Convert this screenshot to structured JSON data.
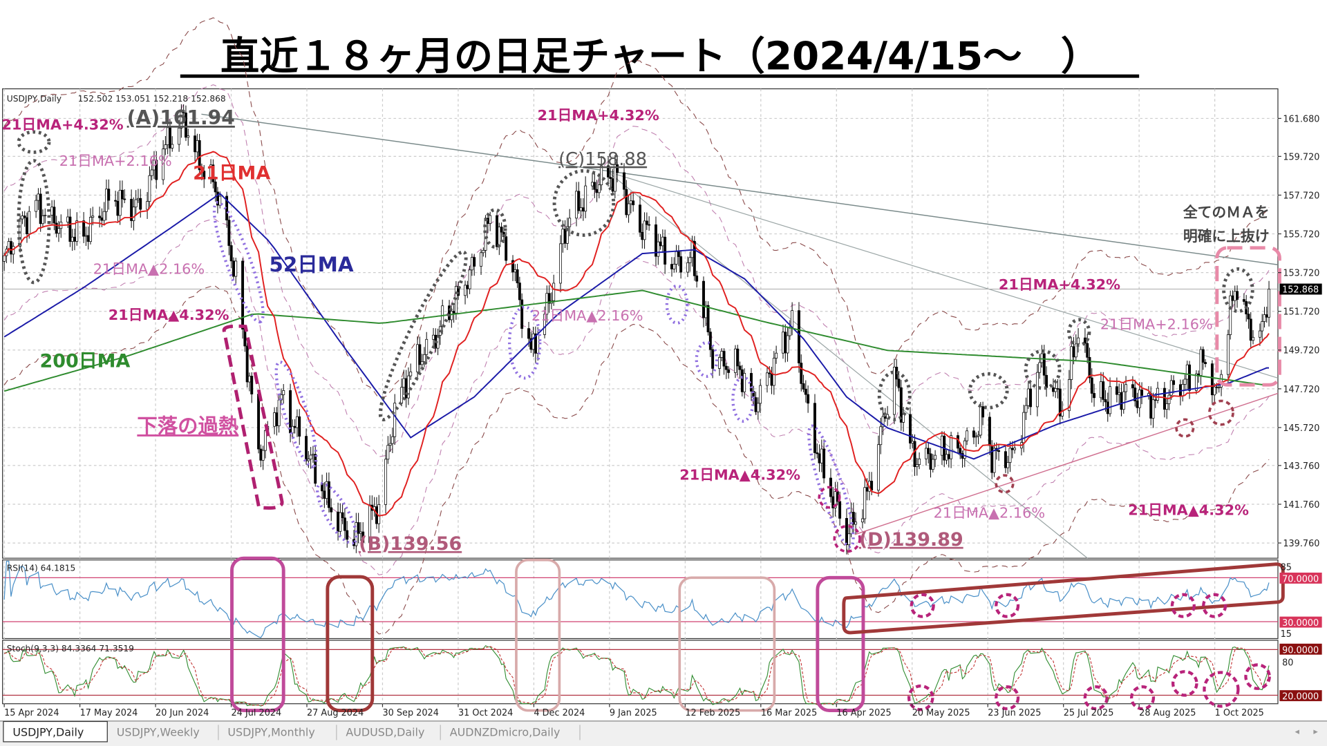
{
  "title": "直近１８ヶ月の日足チャート（2024/4/15～　）",
  "header": {
    "symbol": "USDJPY,Daily",
    "ohlc": "152.502 153.051 152.218 152.868"
  },
  "indicators": {
    "rsi_label": "RSI(14) 64.1815",
    "stoch_label": "Stoch(9,3,3) 84.3364 71.3519"
  },
  "annotations": {
    "a_high": "(A)161.94",
    "b_low": "(B)139.56",
    "c_high": "(C)158.88",
    "d_low": "(D)139.89",
    "env_up432": "21日MA+4.32%",
    "env_up216": "21日MA+2.16%",
    "env_dn216": "21日MA▲2.16%",
    "env_dn432": "21日MA▲4.32%",
    "ma21": "21日MA",
    "ma52": "52日MA",
    "ma200": "200日MA",
    "overheat": "下落の過熱",
    "breakout_line1": "全てのＭＡを",
    "breakout_line2": "明確に上抜け"
  },
  "price_axis": [
    "161.680",
    "159.720",
    "157.720",
    "155.720",
    "153.720",
    "151.720",
    "149.720",
    "147.720",
    "145.720",
    "143.760",
    "141.760",
    "139.760"
  ],
  "current_price": "152.868",
  "rsi_axis": {
    "top": "85",
    "upper": "70.0000",
    "lower": "30.0000",
    "bottom": "15"
  },
  "stoch_axis": {
    "upper": "90.0000",
    "mid": "80",
    "lower": "20.0000"
  },
  "date_axis": [
    "15 Apr 2024",
    "17 May 2024",
    "20 Jun 2024",
    "24 Jul 2024",
    "27 Aug 2024",
    "30 Sep 2024",
    "31 Oct 2024",
    "4 Dec 2024",
    "9 Jan 2025",
    "12 Feb 2025",
    "16 Mar 2025",
    "16 Apr 2025",
    "20 May 2025",
    "23 Jun 2025",
    "25 Jul 2025",
    "28 Aug 2025",
    "1 Oct 2025"
  ],
  "tabs": [
    {
      "label": "USDJPY,Daily",
      "active": true
    },
    {
      "label": "USDJPY,Weekly",
      "active": false
    },
    {
      "label": "USDJPY,Monthly",
      "active": false
    },
    {
      "label": "AUDUSD,Daily",
      "active": false
    },
    {
      "label": "AUDNZDmicro,Daily",
      "active": false
    }
  ],
  "colors": {
    "ma21": "#e02020",
    "ma52": "#1a1aa8",
    "ma200": "#2e8b2e",
    "rsi": "#4a90c8",
    "stoch_k": "#2e8b2e",
    "stoch_d": "#c03030",
    "level_line": "#d04070",
    "annotation_magenta": "#b8237a"
  },
  "chart_data": {
    "type": "candlestick",
    "symbol": "USDJPY",
    "timeframe": "Daily",
    "ylim": [
      139.76,
      161.68
    ],
    "grid": true,
    "close_keypoints": [
      [
        "2024-04-15",
        154.3
      ],
      [
        "2024-04-29",
        157.5
      ],
      [
        "2024-05-10",
        155.8
      ],
      [
        "2024-05-17",
        155.6
      ],
      [
        "2024-05-31",
        157.2
      ],
      [
        "2024-06-14",
        157.4
      ],
      [
        "2024-06-20",
        158.9
      ],
      [
        "2024-07-03",
        161.9
      ],
      [
        "2024-07-11",
        159.0
      ],
      [
        "2024-07-19",
        157.5
      ],
      [
        "2024-07-26",
        153.8
      ],
      [
        "2024-08-05",
        144.0
      ],
      [
        "2024-08-15",
        147.5
      ],
      [
        "2024-08-27",
        144.0
      ],
      [
        "2024-09-16",
        139.6
      ],
      [
        "2024-09-27",
        142.0
      ],
      [
        "2024-10-04",
        146.5
      ],
      [
        "2024-10-15",
        149.5
      ],
      [
        "2024-10-31",
        152.0
      ],
      [
        "2024-11-15",
        156.5
      ],
      [
        "2024-11-25",
        154.0
      ],
      [
        "2024-12-03",
        149.8
      ],
      [
        "2024-12-11",
        152.0
      ],
      [
        "2024-12-20",
        157.0
      ],
      [
        "2025-01-10",
        158.9
      ],
      [
        "2025-01-20",
        156.0
      ],
      [
        "2025-02-03",
        154.5
      ],
      [
        "2025-02-12",
        154.3
      ],
      [
        "2025-02-21",
        149.5
      ],
      [
        "2025-03-03",
        149.0
      ],
      [
        "2025-03-11",
        146.8
      ],
      [
        "2025-03-21",
        149.5
      ],
      [
        "2025-03-28",
        150.8
      ],
      [
        "2025-04-04",
        146.5
      ],
      [
        "2025-04-11",
        143.5
      ],
      [
        "2025-04-21",
        139.9
      ],
      [
        "2025-04-30",
        142.5
      ],
      [
        "2025-05-12",
        148.2
      ],
      [
        "2025-05-20",
        144.5
      ],
      [
        "2025-05-30",
        144.0
      ],
      [
        "2025-06-10",
        144.8
      ],
      [
        "2025-06-20",
        146.0
      ],
      [
        "2025-06-24",
        144.0
      ],
      [
        "2025-07-03",
        144.5
      ],
      [
        "2025-07-15",
        148.8
      ],
      [
        "2025-07-25",
        147.0
      ],
      [
        "2025-08-01",
        150.7
      ],
      [
        "2025-08-08",
        147.3
      ],
      [
        "2025-08-20",
        147.5
      ],
      [
        "2025-08-29",
        147.0
      ],
      [
        "2025-09-10",
        147.5
      ],
      [
        "2025-09-19",
        148.0
      ],
      [
        "2025-09-26",
        149.5
      ],
      [
        "2025-10-01",
        147.3
      ],
      [
        "2025-10-07",
        151.5
      ],
      [
        "2025-10-10",
        153.0
      ],
      [
        "2025-10-14",
        151.3
      ],
      [
        "2025-10-20",
        150.5
      ],
      [
        "2025-10-24",
        152.868
      ]
    ],
    "series": [
      {
        "name": "52日MA",
        "values": [
          [
            "2024-04-15",
            150.4
          ],
          [
            "2024-05-20",
            152.95
          ],
          [
            "2024-06-27",
            156.0
          ],
          [
            "2024-07-19",
            157.8
          ],
          [
            "2024-08-10",
            155.3
          ],
          [
            "2024-09-09",
            150.3
          ],
          [
            "2024-10-11",
            145.2
          ],
          [
            "2024-11-08",
            147.3
          ],
          [
            "2024-12-15",
            151.6
          ],
          [
            "2025-01-21",
            154.7
          ],
          [
            "2025-02-13",
            154.9
          ],
          [
            "2025-03-07",
            153.4
          ],
          [
            "2025-04-02",
            150.3
          ],
          [
            "2025-04-21",
            147.3
          ],
          [
            "2025-05-09",
            145.7
          ],
          [
            "2025-06-16",
            144.1
          ],
          [
            "2025-07-23",
            145.9
          ],
          [
            "2025-08-29",
            147.3
          ],
          [
            "2025-10-06",
            148.0
          ],
          [
            "2025-10-23",
            148.8
          ]
        ]
      },
      {
        "name": "200日MA",
        "values": [
          [
            "2024-04-15",
            147.6
          ],
          [
            "2024-06-08",
            149.4
          ],
          [
            "2024-08-03",
            151.6
          ],
          [
            "2024-09-28",
            151.1
          ],
          [
            "2025-01-21",
            152.8
          ],
          [
            "2025-03-15",
            151.2
          ],
          [
            "2025-05-09",
            149.7
          ],
          [
            "2025-08-11",
            149.1
          ],
          [
            "2025-10-23",
            147.9
          ]
        ]
      }
    ],
    "ma21_period": 21,
    "envelope_percents": [
      2.16,
      4.32
    ],
    "rsi": {
      "period": 14,
      "levels": [
        70,
        30
      ],
      "ylim": [
        15,
        85
      ],
      "last": 64.1815
    },
    "stoch": {
      "params": [
        9,
        3,
        3
      ],
      "levels": [
        90,
        20
      ],
      "last_k": 84.3364,
      "last_d": 71.3519
    }
  }
}
